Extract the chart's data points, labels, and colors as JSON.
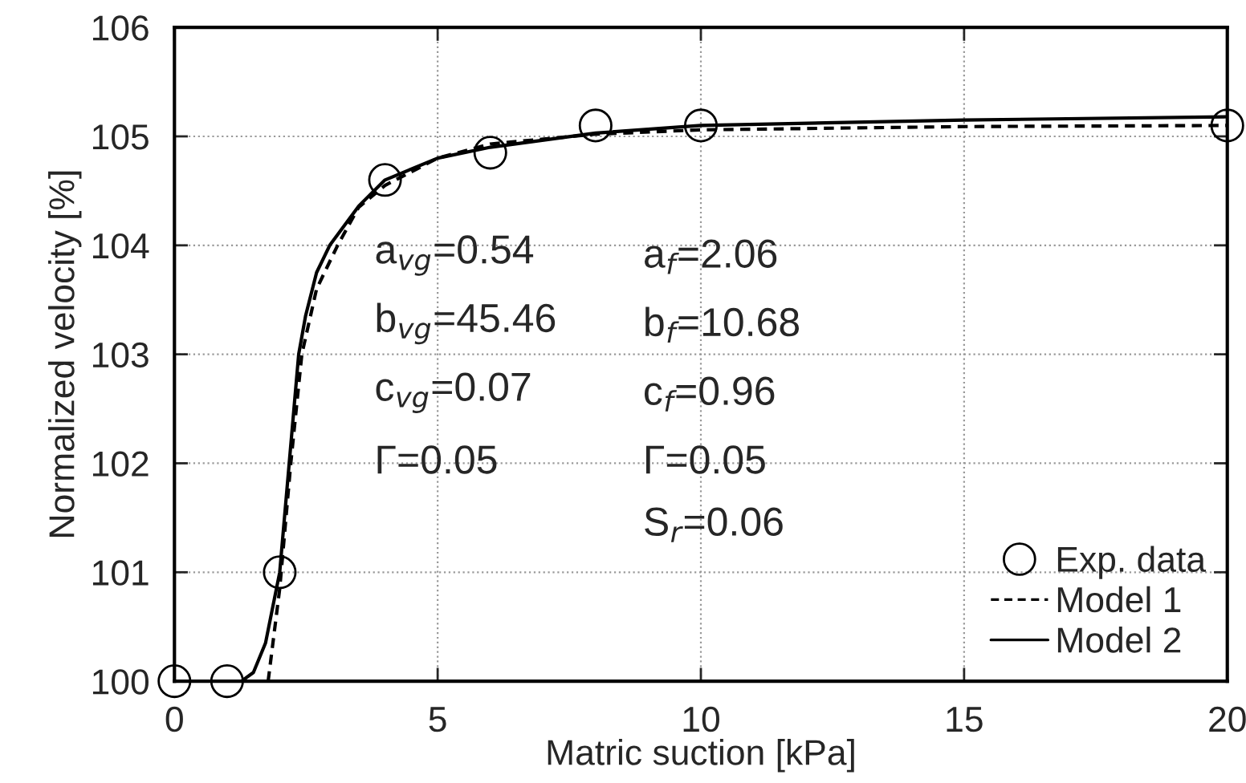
{
  "chart_data": {
    "type": "line",
    "xlabel": "Matric suction [kPa]",
    "ylabel": "Normalized velocity [%]",
    "xlim": [
      0,
      20
    ],
    "ylim": [
      100,
      106
    ],
    "xticks": [
      0,
      5,
      10,
      15,
      20
    ],
    "yticks": [
      100,
      101,
      102,
      103,
      104,
      105,
      106
    ],
    "grid": true,
    "legend": "bottom right",
    "series": [
      {
        "name": "Exp. data",
        "type": "scatter",
        "marker": "circle",
        "color": "#000000",
        "x": [
          0,
          1,
          2,
          4,
          6,
          8,
          10,
          20
        ],
        "values": [
          100,
          100,
          101,
          104.6,
          104.85,
          105.1,
          105.1,
          105.1
        ]
      },
      {
        "name": "Model 1",
        "line_style": "dashed",
        "color": "#000000",
        "x": [
          1.78,
          2.0,
          2.21,
          2.42,
          2.7,
          3.1,
          3.5,
          4.0,
          5.0,
          6.0,
          8.0,
          10.0,
          15.0,
          20.0
        ],
        "values": [
          100,
          100.85,
          102,
          103,
          103.6,
          104,
          104.35,
          104.55,
          104.8,
          104.93,
          105.02,
          105.06,
          105.09,
          105.1
        ]
      },
      {
        "name": "Model 2",
        "line_style": "solid",
        "color": "#000000",
        "x": [
          1.27,
          1.5,
          1.73,
          2.0,
          2.18,
          2.36,
          2.49,
          2.7,
          2.95,
          3.5,
          4.0,
          5.0,
          6.0,
          8.0,
          10.0,
          15.0,
          20.0
        ],
        "values": [
          100,
          100.08,
          100.35,
          101,
          102,
          103,
          103.35,
          103.75,
          104,
          104.36,
          104.6,
          104.8,
          104.9,
          105.03,
          105.1,
          105.15,
          105.18
        ]
      }
    ],
    "annotations": [
      "a$_{vg}$=0.54",
      "b$_{vg}$=45.46",
      "c$_{vg}$=0.07",
      "Γ=0.05",
      "a$_{f}$=2.06",
      "b$_{f}$=10.68",
      "c$_{f}$=0.96",
      "Γ=0.05",
      "S$_{r}$=0.06"
    ]
  }
}
